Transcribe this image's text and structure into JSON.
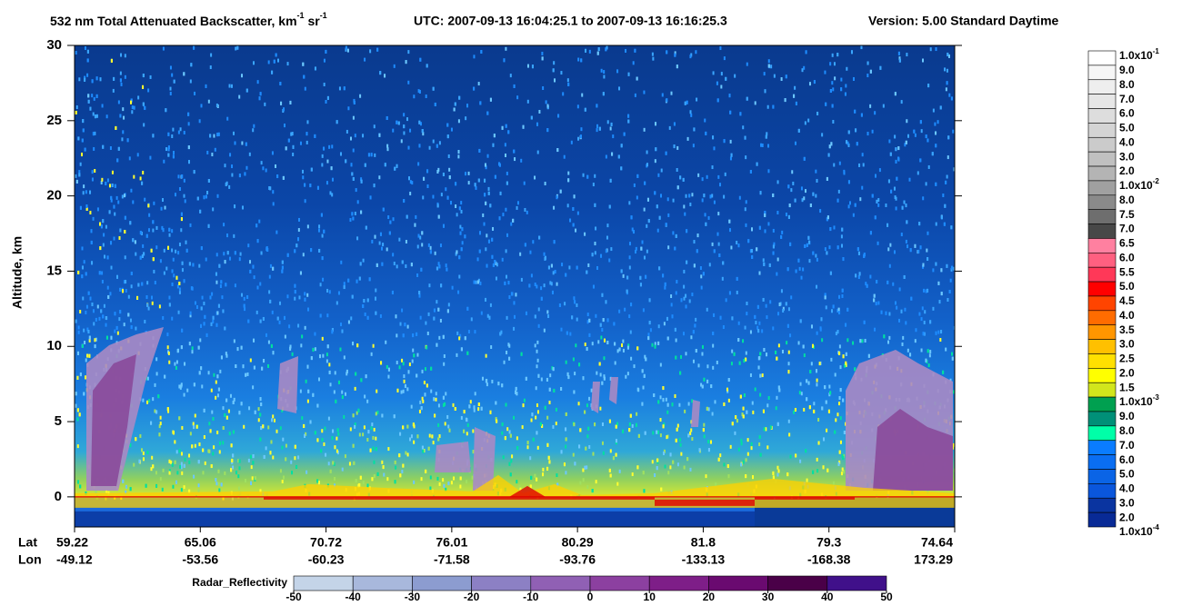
{
  "chart_data": {
    "type": "curtain",
    "title_parts": [
      "532 nm Total Attenuated Backscatter, km",
      "-1",
      " sr",
      "-1"
    ],
    "time_range": "UTC:  2007-09-13 16:04:25.1  to  2007-09-13 16:16:25.3",
    "version": "Version: 5.00  Standard  Daytime",
    "ylabel": "Altitude, km",
    "ylim": [
      -2,
      30
    ],
    "yticks": [
      0,
      5,
      10,
      15,
      20,
      25,
      30
    ],
    "x_row_labels": [
      "Lat",
      "Lon"
    ],
    "lat": [
      59.22,
      65.06,
      70.72,
      76.01,
      80.29,
      81.8,
      79.3,
      74.64
    ],
    "lon": [
      -49.12,
      -53.56,
      -60.23,
      -71.58,
      -93.76,
      -133.13,
      -168.38,
      173.29
    ],
    "colorbar": {
      "labels": [
        {
          "text": "1.0x10",
          "sup": "-1"
        },
        "9.0",
        "8.0",
        "7.0",
        "6.0",
        "5.0",
        "4.0",
        "3.0",
        "2.0",
        {
          "text": "1.0x10",
          "sup": "-2"
        },
        "8.0",
        "7.5",
        "7.0",
        "6.5",
        "6.0",
        "5.5",
        "5.0",
        "4.5",
        "4.0",
        "3.5",
        "3.0",
        "2.5",
        "2.0",
        "1.5",
        {
          "text": "1.0x10",
          "sup": "-3"
        },
        "9.0",
        "8.0",
        "7.0",
        "6.0",
        "5.0",
        "4.0",
        "3.0",
        "2.0",
        {
          "text": "1.0x10",
          "sup": "-4"
        }
      ],
      "colors": [
        "#ffffff",
        "#f6f6f6",
        "#eeeeee",
        "#e6e6e6",
        "#dddddd",
        "#d4d4d4",
        "#cbcbcb",
        "#c0c0c0",
        "#b4b4b4",
        "#a0a0a0",
        "#8a8a8a",
        "#6e6e6e",
        "#484848",
        "#ff80a0",
        "#ff6080",
        "#ff3858",
        "#ff0000",
        "#ff4400",
        "#ff6c00",
        "#ff9600",
        "#ffc000",
        "#ffe000",
        "#ffff00",
        "#d2e61c",
        "#00a050",
        "#009078",
        "#00ffa8",
        "#0a7cff",
        "#0a6ef2",
        "#0a64e6",
        "#0a56dc",
        "#0a34a0",
        "#082a96"
      ]
    },
    "radar_colorbar": {
      "title": "Radar_Reflectivity",
      "ticks": [
        -50,
        -40,
        -30,
        -20,
        -10,
        0,
        10,
        20,
        30,
        40,
        50
      ],
      "colors": [
        "#c4d4e8",
        "#a8b8dc",
        "#8c9cd0",
        "#8c80c4",
        "#9060b4",
        "#8c40a0",
        "#7e1e88",
        "#6a0a70",
        "#4a0048",
        "#40108a"
      ]
    }
  }
}
